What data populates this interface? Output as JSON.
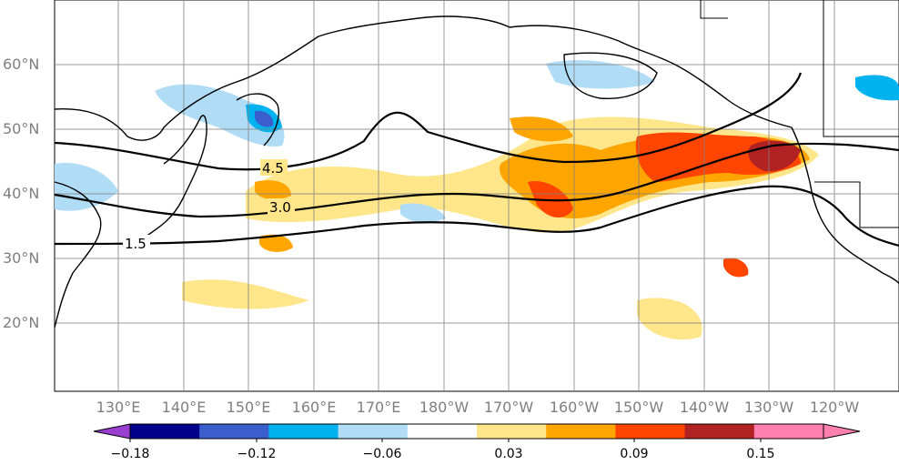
{
  "map": {
    "lat_labels": [
      "60°N",
      "50°N",
      "40°N",
      "30°N",
      "20°N"
    ],
    "lon_labels": [
      "130°E",
      "140°E",
      "150°E",
      "160°E",
      "170°E",
      "180°W",
      "170°W",
      "160°W",
      "150°W",
      "140°W",
      "130°W",
      "120°W"
    ],
    "contour_labels": [
      "4.5",
      "3.0",
      "1.5"
    ]
  },
  "colorbar": {
    "tick_labels": [
      "−0.18",
      "−0.12",
      "−0.06",
      "0.03",
      "0.09",
      "0.15"
    ],
    "colors": [
      "#9a3ed1",
      "#00008b",
      "#3a5fcd",
      "#00b2ee",
      "#b0dcf6",
      "#ffffff",
      "#ffe68a",
      "#ffa500",
      "#ff4500",
      "#b22222",
      "#ff7fae",
      "#ff7fae"
    ]
  },
  "colors": {
    "land_outline": "#000000",
    "gridline": "#808080",
    "contour": "#000000"
  }
}
